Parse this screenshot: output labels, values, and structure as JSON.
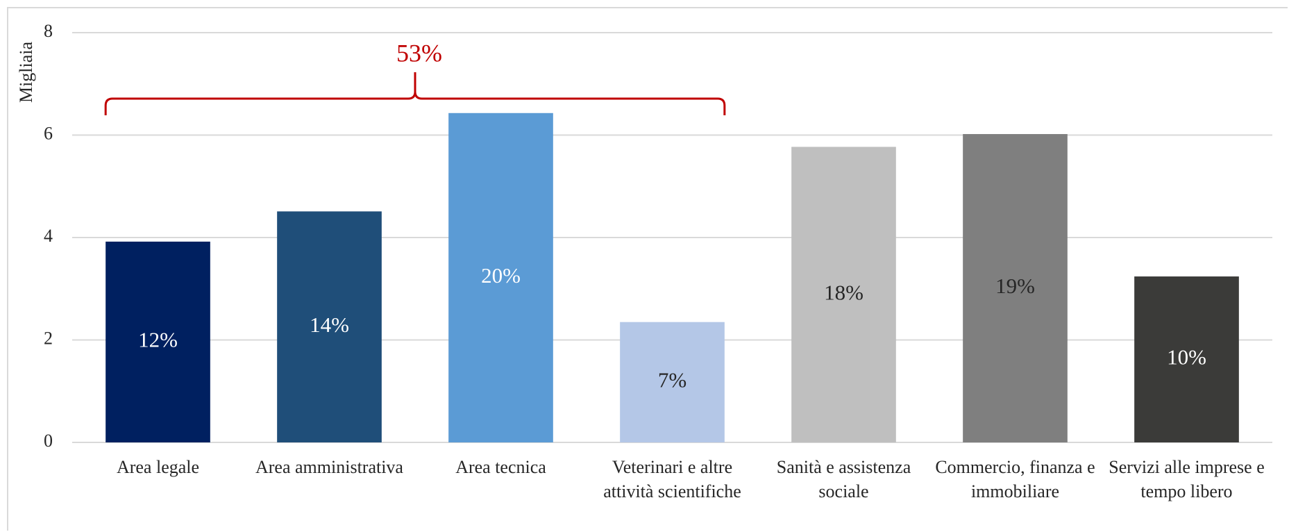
{
  "chart_data": {
    "type": "bar",
    "y_axis_label": "Migliaia",
    "categories": [
      "Area legale",
      "Area amministrativa",
      "Area tecnica",
      "Veterinari e altre attività scientifiche",
      "Sanità e assistenza sociale",
      "Commercio, finanza e immobiliare",
      "Servizi alle imprese e tempo libero"
    ],
    "values": [
      3.92,
      4.51,
      6.43,
      2.35,
      5.77,
      6.02,
      3.24
    ],
    "colors": [
      "#002060",
      "#1f4e79",
      "#5b9bd5",
      "#b4c7e7",
      "#bfbfbf",
      "#7f7f7f",
      "#3b3b39"
    ],
    "shares": [
      {
        "value": 12,
        "label": "12%"
      },
      {
        "value": 14,
        "label": "14%"
      },
      {
        "value": 20,
        "label": "20%"
      },
      {
        "value": 7,
        "label": "7%"
      },
      {
        "value": 18,
        "label": "18%"
      },
      {
        "value": 19,
        "label": "19%"
      },
      {
        "value": 10,
        "label": "10%"
      }
    ],
    "share_label_colors": [
      "#ffffff",
      "#ffffff",
      "#ffffff",
      "#262626",
      "#262626",
      "#262626",
      "#ffffff"
    ],
    "annotation": {
      "value": 53,
      "label": "53%",
      "first": 0,
      "last": 3,
      "color": "#c00000"
    },
    "ylim": [
      0,
      8
    ],
    "yticks": [
      0,
      2,
      4,
      6,
      8
    ],
    "grid": true
  }
}
